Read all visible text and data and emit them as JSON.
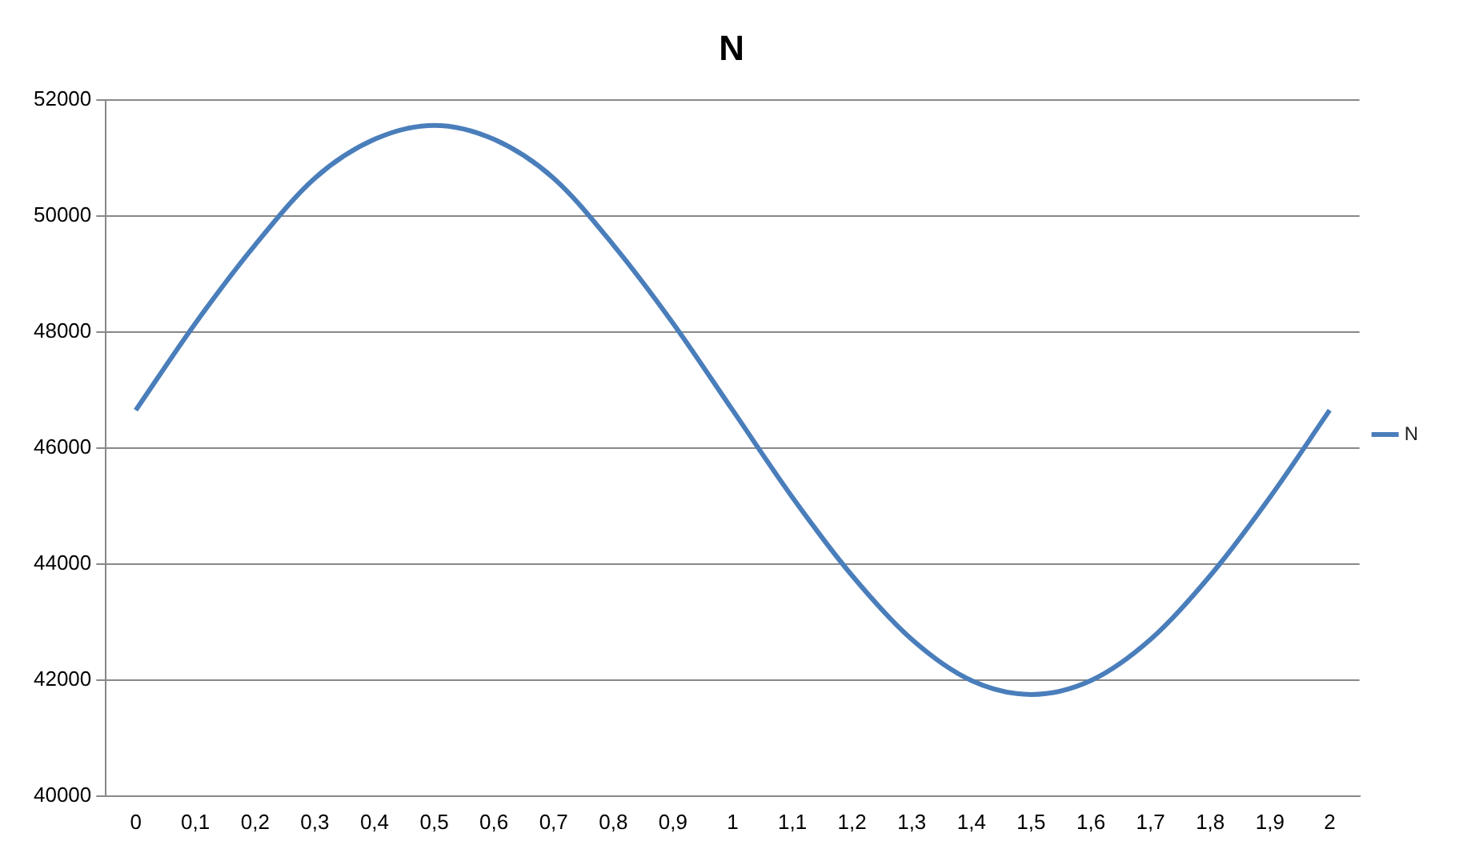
{
  "chart_data": {
    "type": "line",
    "title": "N",
    "categories": [
      "0",
      "0,1",
      "0,2",
      "0,3",
      "0,4",
      "0,5",
      "0,6",
      "0,7",
      "0,8",
      "0,9",
      "1",
      "1,1",
      "1,2",
      "1,3",
      "1,4",
      "1,5",
      "1,6",
      "1,7",
      "1,8",
      "1,9",
      "2"
    ],
    "series": [
      {
        "name": "N",
        "color": "#4a7ebb",
        "values": [
          46650,
          48150,
          49500,
          50650,
          51320,
          51560,
          51320,
          50650,
          49500,
          48150,
          46650,
          45150,
          43800,
          42700,
          41990,
          41750,
          41990,
          42700,
          43800,
          45150,
          46650
        ]
      }
    ],
    "ylim": [
      40000,
      52000
    ],
    "yticks": [
      40000,
      42000,
      44000,
      46000,
      48000,
      50000,
      52000
    ],
    "grid": "y",
    "legend": "right",
    "marker": "none",
    "line_style": "solid"
  }
}
